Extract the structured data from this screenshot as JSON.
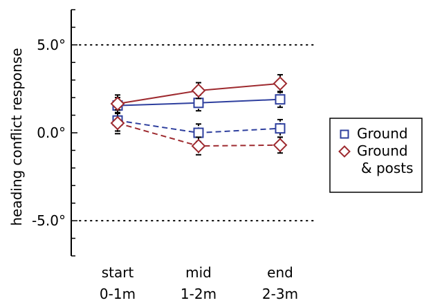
{
  "chart_data": {
    "type": "line",
    "ylabel": "heading conflict response",
    "ylim": [
      -7.0,
      7.0
    ],
    "yticks": [
      {
        "value": 5.0,
        "label": "5.0°"
      },
      {
        "value": 0.0,
        "label": "0.0°"
      },
      {
        "value": -5.0,
        "label": "-5.0°"
      }
    ],
    "reference_lines": [
      5.0,
      -5.0
    ],
    "categories": [
      {
        "line1": "start",
        "line2": "0-1m"
      },
      {
        "line1": "mid",
        "line2": "1-2m"
      },
      {
        "line1": "end",
        "line2": "2-3m"
      }
    ],
    "series": [
      {
        "legend": "ground",
        "marker": "square",
        "color": "#2e3f9e",
        "dash": "solid",
        "values": [
          1.55,
          1.7,
          1.9
        ],
        "errors": [
          0.45,
          0.45,
          0.45
        ]
      },
      {
        "legend": "ground",
        "marker": "square",
        "color": "#2e3f9e",
        "dash": "dashed",
        "values": [
          0.7,
          0.0,
          0.25
        ],
        "errors": [
          0.6,
          0.5,
          0.5
        ]
      },
      {
        "legend": "posts",
        "marker": "diamond",
        "color": "#9e2a2f",
        "dash": "solid",
        "values": [
          1.65,
          2.4,
          2.8
        ],
        "errors": [
          0.5,
          0.45,
          0.5
        ]
      },
      {
        "legend": "posts",
        "marker": "diamond",
        "color": "#9e2a2f",
        "dash": "dashed",
        "values": [
          0.55,
          -0.75,
          -0.7
        ],
        "errors": [
          0.6,
          0.5,
          0.45
        ]
      }
    ],
    "legend": {
      "position": "right",
      "entries": [
        {
          "key": "ground",
          "marker": "square",
          "color": "#2e3f9e",
          "line1": "Ground",
          "line2": ""
        },
        {
          "key": "posts",
          "marker": "diamond",
          "color": "#9e2a2f",
          "line1": "Ground",
          "line2": "& posts"
        }
      ]
    }
  }
}
